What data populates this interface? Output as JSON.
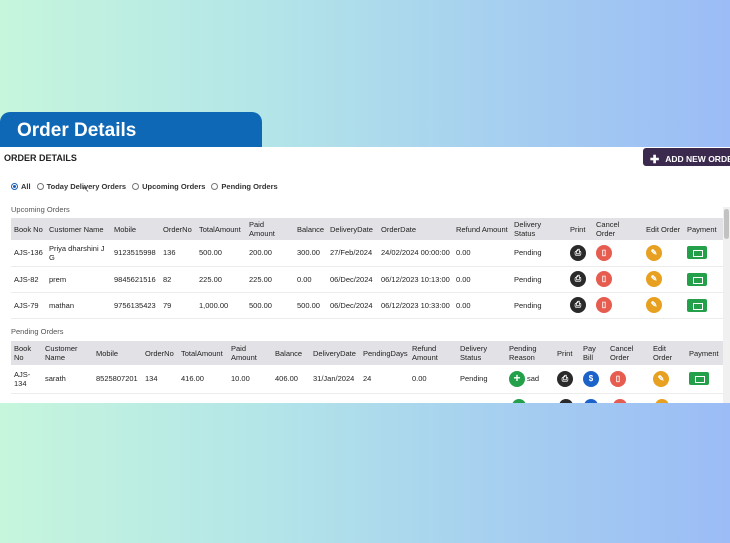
{
  "banner": {
    "title": "Order Details"
  },
  "panel": {
    "title": "ORDER DETAILS",
    "add_button": "ADD NEW ORDER",
    "filters": [
      {
        "label": "All",
        "selected": true
      },
      {
        "label": "Today Delivery Orders",
        "selected": false
      },
      {
        "label": "Upcoming Orders",
        "selected": false
      },
      {
        "label": "Pending Orders",
        "selected": false
      }
    ]
  },
  "upcoming": {
    "title": "Upcoming Orders",
    "headers": [
      "Book No",
      "Customer Name",
      "Mobile",
      "OrderNo",
      "TotalAmount",
      "Paid Amount",
      "Balance",
      "DeliveryDate",
      "OrderDate",
      "Refund Amount",
      "Delivery Status",
      "Print",
      "Cancel Order",
      "Edit Order",
      "Payment"
    ],
    "rows": [
      [
        "AJS-136",
        "Priya dharshini J G",
        "9123515998",
        "136",
        "500.00",
        "200.00",
        "300.00",
        "27/Feb/2024",
        "24/02/2024 00:00:00",
        "0.00",
        "Pending"
      ],
      [
        "AJS-82",
        "prem",
        "9845621516",
        "82",
        "225.00",
        "225.00",
        "0.00",
        "06/Dec/2024",
        "06/12/2023 10:13:00",
        "0.00",
        "Pending"
      ],
      [
        "AJS-79",
        "mathan",
        "9756135423",
        "79",
        "1,000.00",
        "500.00",
        "500.00",
        "06/Dec/2024",
        "06/12/2023 10:33:00",
        "0.00",
        "Pending"
      ]
    ]
  },
  "pending": {
    "title": "Pending Orders",
    "headers": [
      "Book No",
      "Customer Name",
      "Mobile",
      "OrderNo",
      "TotalAmount",
      "Paid Amount",
      "Balance",
      "DeliveryDate",
      "PendingDays",
      "Refund Amount",
      "Delivery Status",
      "Pending Reason",
      "Print",
      "Pay Bill",
      "Cancel Order",
      "Edit Order",
      "Payment"
    ],
    "rows": [
      [
        "AJS-134",
        "sarath",
        "8525807201",
        "134",
        "416.00",
        "10.00",
        "406.00",
        "31/Jan/2024",
        "24",
        "0.00",
        "Pending",
        "sad"
      ]
    ]
  },
  "icons": {
    "print": "printer-icon",
    "cancel": "trash-icon",
    "edit": "pencil-icon",
    "payment": "money-icon",
    "pay_bill": "dollar-icon",
    "reason": "plus-icon"
  },
  "colors": {
    "banner": "#0f68b6",
    "add_button": "#3c2a4e",
    "print": "#2a2a2a",
    "cancel": "#e65c4f",
    "edit": "#e8a020",
    "pay": "#1c63c9",
    "green": "#24a04a"
  }
}
